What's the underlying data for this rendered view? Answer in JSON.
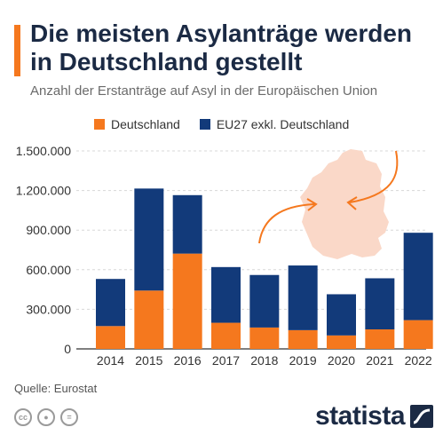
{
  "header": {
    "title": "Die meisten Asylanträge werden in Deutschland gestellt",
    "subtitle": "Anzahl der Erstanträge auf Asyl in der Europäischen Union"
  },
  "colors": {
    "accent": "#f5781e",
    "deutschland": "#f5781e",
    "eu27": "#123a7a",
    "map": "#fad8c8",
    "arrow": "#f5781e"
  },
  "chart_data": {
    "type": "bar",
    "stacked": true,
    "categories": [
      "2014",
      "2015",
      "2016",
      "2017",
      "2018",
      "2019",
      "2020",
      "2021",
      "2022"
    ],
    "series": [
      {
        "name": "Deutschland",
        "values": [
          173000,
          442000,
          722000,
          198000,
          162000,
          142000,
          102000,
          148000,
          218000
        ]
      },
      {
        "name": "EU27 exkl. Deutschland",
        "values": [
          357000,
          773000,
          443000,
          422000,
          398000,
          490000,
          312000,
          387000,
          662000
        ]
      }
    ],
    "yticks": [
      "0",
      "300.000",
      "600.000",
      "900.000",
      "1.200.000",
      "1.500.000"
    ],
    "ylim": [
      0,
      1500000
    ],
    "grid": true,
    "legend": "top",
    "xlabel": "",
    "ylabel": ""
  },
  "footer": {
    "source": "Quelle: Eurostat",
    "brand": "statista",
    "icons": [
      "cc-icon",
      "person-icon",
      "equals-icon"
    ]
  }
}
